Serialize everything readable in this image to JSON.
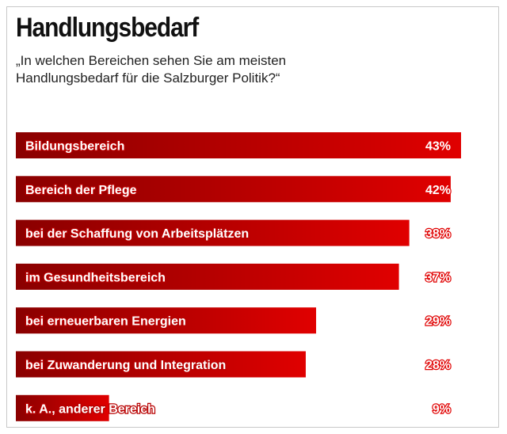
{
  "chart_data": {
    "type": "bar",
    "orientation": "horizontal",
    "title": "Handlungsbedarf",
    "subtitle": "„In welchen Bereichen sehen Sie am meisten Handlungsbedarf für die Salzburger Politik?“",
    "categories": [
      "Bildungsbereich",
      "Bereich der Pflege",
      "bei der Schaffung von Arbeitsplätzen",
      "im Gesundheitsbereich",
      "bei erneuerbaren Energien",
      "bei Zuwanderung und Integration",
      "k. A., anderer Bereich"
    ],
    "values": [
      43,
      42,
      38,
      37,
      29,
      28,
      9
    ],
    "value_labels": [
      "43%",
      "42%",
      "38%",
      "37%",
      "29%",
      "28%",
      "9%"
    ],
    "unit": "%",
    "xlim": [
      0,
      43
    ],
    "grid": false,
    "bar_color_dark": "#8a0000",
    "bar_color_light": "#e00000"
  }
}
